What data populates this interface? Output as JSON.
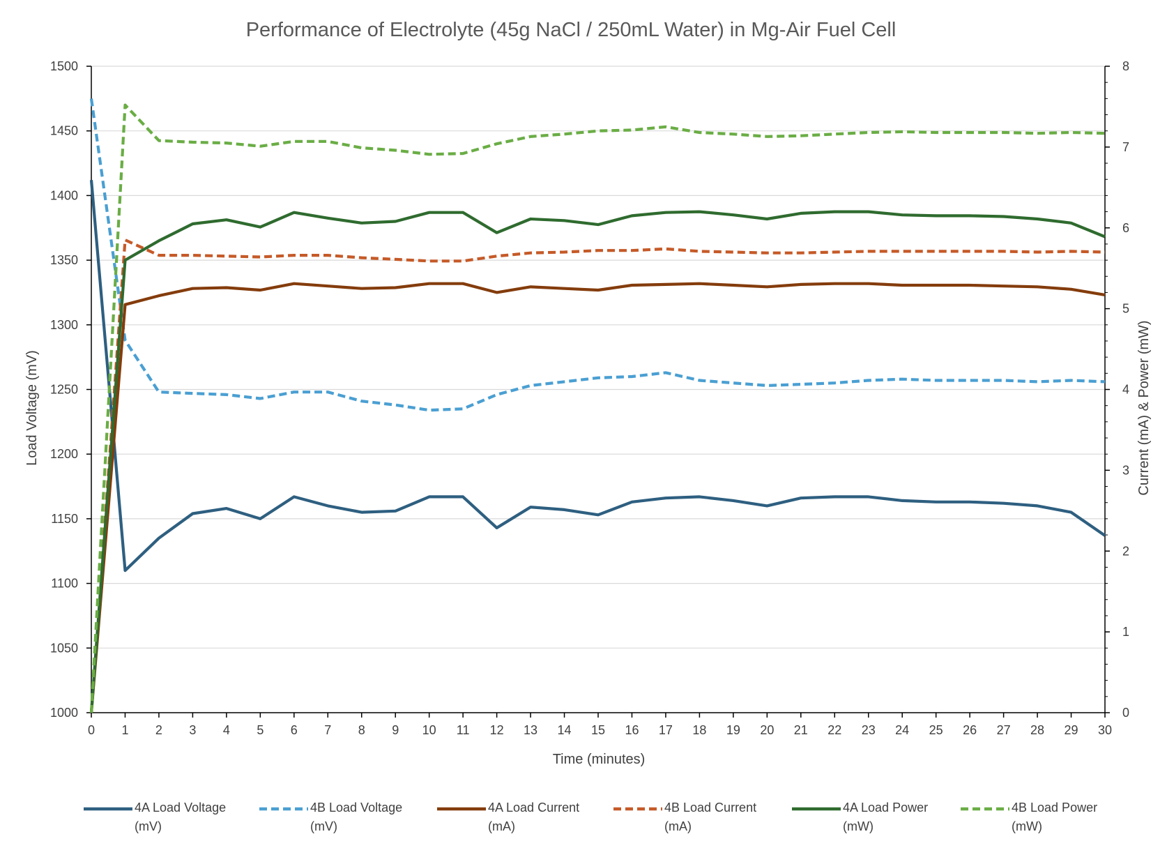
{
  "chart_data": {
    "type": "line",
    "title": "Performance of Electrolyte (45g NaCl / 250mL Water) in Mg-Air Fuel Cell",
    "xlabel": "Time (minutes)",
    "ylabel": "Load Voltage (mV)",
    "y2label": "Current (mA) & Power (mW)",
    "x": [
      0,
      1,
      2,
      3,
      4,
      5,
      6,
      7,
      8,
      9,
      10,
      11,
      12,
      13,
      14,
      15,
      16,
      17,
      18,
      19,
      20,
      21,
      22,
      23,
      24,
      25,
      26,
      27,
      28,
      29,
      30
    ],
    "xlim": [
      0,
      30
    ],
    "ylim": [
      1000,
      1500
    ],
    "y_ticks": [
      1000,
      1050,
      1100,
      1150,
      1200,
      1250,
      1300,
      1350,
      1400,
      1450,
      1500
    ],
    "y2lim": [
      0,
      8
    ],
    "y2_ticks": [
      0,
      1,
      2,
      3,
      4,
      5,
      6,
      7,
      8
    ],
    "grid": true,
    "legend_position": "bottom",
    "series": [
      {
        "name": "4A Load Voltage (mV)",
        "legend_lines": [
          "4A Load Voltage",
          "(mV)"
        ],
        "axis": "left",
        "color": "#2e5f80",
        "dashed": false,
        "values": [
          1412,
          1110,
          1135,
          1154,
          1158,
          1150,
          1167,
          1160,
          1155,
          1156,
          1167,
          1167,
          1143,
          1159,
          1157,
          1153,
          1163,
          1166,
          1167,
          1164,
          1160,
          1166,
          1167,
          1167,
          1164,
          1163,
          1163,
          1162,
          1160,
          1155,
          1137
        ]
      },
      {
        "name": "4B Load Voltage (mV)",
        "legend_lines": [
          "4B Load Voltage",
          "(mV)"
        ],
        "axis": "left",
        "color": "#4a9fd2",
        "dashed": true,
        "values": [
          1475,
          1288,
          1248,
          1247,
          1246,
          1243,
          1248,
          1248,
          1241,
          1238,
          1234,
          1235,
          1246,
          1253,
          1256,
          1259,
          1260,
          1263,
          1257,
          1255,
          1253,
          1254,
          1255,
          1257,
          1258,
          1257,
          1257,
          1257,
          1256,
          1257,
          1256
        ]
      },
      {
        "name": "4A Load Current (mA)",
        "legend_lines": [
          "4A Load Current",
          "(mA)"
        ],
        "axis": "right",
        "color": "#843c0c",
        "dashed": false,
        "values": [
          0,
          5.05,
          5.16,
          5.25,
          5.26,
          5.23,
          5.31,
          5.28,
          5.25,
          5.26,
          5.31,
          5.31,
          5.2,
          5.27,
          5.25,
          5.23,
          5.29,
          5.3,
          5.31,
          5.29,
          5.27,
          5.3,
          5.31,
          5.31,
          5.29,
          5.29,
          5.29,
          5.28,
          5.27,
          5.24,
          5.17
        ]
      },
      {
        "name": "4B Load Current (mA)",
        "legend_lines": [
          "4B Load Current",
          "(mA)"
        ],
        "axis": "right",
        "color": "#c55a28",
        "dashed": true,
        "values": [
          0,
          5.85,
          5.66,
          5.66,
          5.65,
          5.64,
          5.66,
          5.66,
          5.63,
          5.61,
          5.59,
          5.59,
          5.65,
          5.69,
          5.7,
          5.72,
          5.72,
          5.74,
          5.71,
          5.7,
          5.69,
          5.69,
          5.7,
          5.71,
          5.71,
          5.71,
          5.71,
          5.71,
          5.7,
          5.71,
          5.7
        ]
      },
      {
        "name": "4A Load Power (mW)",
        "legend_lines": [
          "4A Load Power",
          "(mW)"
        ],
        "axis": "right",
        "color": "#2f6b2f",
        "dashed": false,
        "values": [
          0,
          5.6,
          5.84,
          6.05,
          6.1,
          6.01,
          6.19,
          6.12,
          6.06,
          6.08,
          6.19,
          6.19,
          5.94,
          6.11,
          6.09,
          6.04,
          6.15,
          6.19,
          6.2,
          6.16,
          6.11,
          6.18,
          6.2,
          6.2,
          6.16,
          6.15,
          6.15,
          6.14,
          6.11,
          6.06,
          5.89
        ]
      },
      {
        "name": "4B Load Power (mW)",
        "legend_lines": [
          "4B Load Power",
          "(mW)"
        ],
        "axis": "right",
        "color": "#6aad45",
        "dashed": true,
        "values": [
          0,
          7.52,
          7.08,
          7.06,
          7.05,
          7.01,
          7.07,
          7.07,
          6.99,
          6.96,
          6.91,
          6.92,
          7.04,
          7.13,
          7.16,
          7.2,
          7.21,
          7.25,
          7.18,
          7.16,
          7.13,
          7.14,
          7.16,
          7.18,
          7.19,
          7.18,
          7.18,
          7.18,
          7.17,
          7.18,
          7.17
        ]
      }
    ]
  }
}
